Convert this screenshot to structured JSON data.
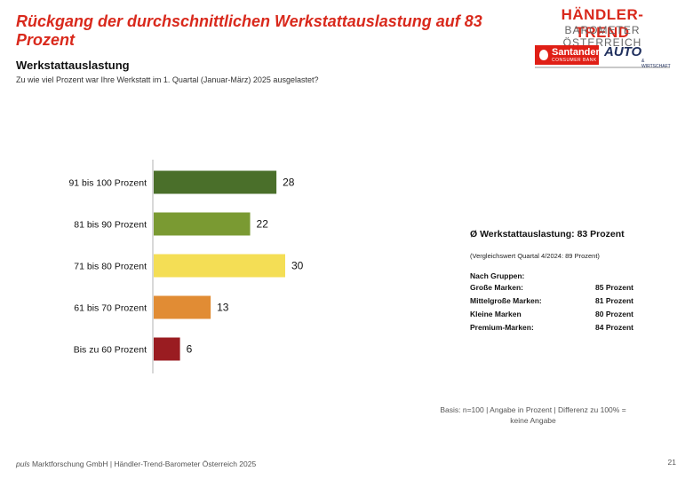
{
  "header": {
    "title": "Rückgang der durchschnittlichen Werkstattauslastung auf 83 Prozent",
    "subtitle": "Werkstattauslastung",
    "question": "Zu wie viel Prozent war Ihre Werkstatt im 1. Quartal (Januar-März) 2025 ausgelastet?"
  },
  "logo": {
    "line1": "HÄNDLER-TREND",
    "line2": "BAROMETER ÖSTERREICH",
    "santander": "Santander",
    "santander_sub": "CONSUMER BANK",
    "auto": "AUTO",
    "auto_sub": "& WIRTSCHAFT",
    "red": "#d9291c",
    "navy": "#20305e"
  },
  "chart_data": {
    "type": "bar",
    "orientation": "horizontal",
    "categories": [
      "91 bis 100 Prozent",
      "81 bis 90 Prozent",
      "71 bis 80 Prozent",
      "61 bis 70 Prozent",
      "Bis zu 60 Prozent"
    ],
    "values": [
      28,
      22,
      30,
      13,
      6
    ],
    "colors": [
      "#4a6f2a",
      "#7a9a32",
      "#f4de55",
      "#e18c34",
      "#9a1c21"
    ],
    "title": "",
    "xlabel": "",
    "ylabel": "",
    "xlim": [
      0,
      30
    ],
    "grid": false,
    "legend": "none"
  },
  "summary": {
    "average": "Ø Werkstattauslastung: 83 Prozent",
    "comparison": "(Vergleichswert Quartal 4/2024: 89 Prozent)",
    "groups_header": "Nach Gruppen:",
    "groups": [
      {
        "name": "Große Marken:",
        "value": "85 Prozent"
      },
      {
        "name": "Mittelgroße Marken:",
        "value": "81 Prozent"
      },
      {
        "name": "Kleine Marken",
        "value": "80 Prozent"
      },
      {
        "name": "Premium-Marken:",
        "value": "84 Prozent"
      }
    ]
  },
  "basis": {
    "line1": "Basis: n=100 | Angabe in Prozent | Differenz zu 100% =",
    "line2": "keine Angabe"
  },
  "footer": {
    "brand": "puls",
    "text": " Marktforschung GmbH | Händler-Trend-Barometer Österreich 2025",
    "page": "21"
  }
}
